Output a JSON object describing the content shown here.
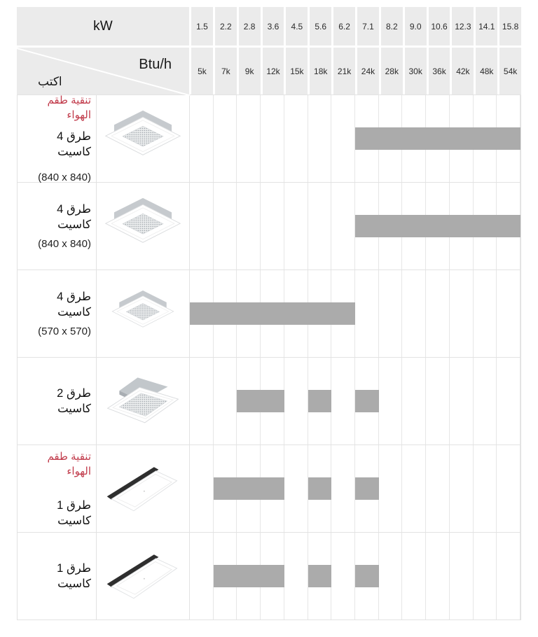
{
  "header": {
    "kw_label": "kW",
    "btu_label": "Btu/h",
    "type_label": "اكتب",
    "kw_values": [
      "1.5",
      "2.2",
      "2.8",
      "3.6",
      "4.5",
      "5.6",
      "6.2",
      "7.1",
      "8.2",
      "9.0",
      "10.6",
      "12.3",
      "14.1",
      "15.8"
    ],
    "btu_values": [
      "5k",
      "7k",
      "9k",
      "12k",
      "15k",
      "18k",
      "21k",
      "24k",
      "28k",
      "30k",
      "36k",
      "42k",
      "48k",
      "54k"
    ]
  },
  "rows": [
    {
      "badge": "طقم تنقية الهواء",
      "name": "4 طرق كاسيت",
      "size": "(840 x 840)",
      "image": "4way"
    },
    {
      "badge": "",
      "name": "4 طرق كاسيت",
      "size": "(840 x 840)",
      "image": "4way"
    },
    {
      "badge": "",
      "name": "4 طرق كاسيت",
      "size": "(570 x 570)",
      "image": "4way-small"
    },
    {
      "badge": "",
      "name": "2 طرق كاسيت",
      "size": "",
      "image": "2way"
    },
    {
      "badge": "طقم تنقية الهواء",
      "name": "1 طرق كاسيت",
      "size": "",
      "image": "1way"
    },
    {
      "badge": "",
      "name": "1 طرق كاسيت",
      "size": "",
      "image": "1way"
    }
  ],
  "colors": {
    "header_bg": "#ebebeb",
    "bar": "#ababab",
    "badge_red": "#c13b4b",
    "grid_line": "#e2e2e2"
  },
  "chart_data": {
    "type": "table",
    "subtype": "capacity-range-bars",
    "x_axis_top_label": "kW",
    "x_axis_bottom_label": "Btu/h",
    "x_kw": [
      1.5,
      2.2,
      2.8,
      3.6,
      4.5,
      5.6,
      6.2,
      7.1,
      8.2,
      9.0,
      10.6,
      12.3,
      14.1,
      15.8
    ],
    "x_btu": [
      "5k",
      "7k",
      "9k",
      "12k",
      "15k",
      "18k",
      "21k",
      "24k",
      "28k",
      "30k",
      "36k",
      "42k",
      "48k",
      "54k"
    ],
    "rows": [
      {
        "label": "طقم تنقية الهواء 4 طرق كاسيت (840 x 840)",
        "ranges": [
          {
            "kw_min": 7.1,
            "kw_max": 15.8,
            "btu_min": "24k",
            "btu_max": "54k"
          }
        ]
      },
      {
        "label": "4 طرق كاسيت (840 x 840)",
        "ranges": [
          {
            "kw_min": 7.1,
            "kw_max": 15.8,
            "btu_min": "24k",
            "btu_max": "54k"
          }
        ]
      },
      {
        "label": "4 طرق كاسيت (570 x 570)",
        "ranges": [
          {
            "kw_min": 1.5,
            "kw_max": 6.2,
            "btu_min": "5k",
            "btu_max": "21k"
          }
        ]
      },
      {
        "label": "2 طرق كاسيت",
        "ranges": [
          {
            "kw_min": 2.8,
            "kw_max": 3.6,
            "btu_min": "9k",
            "btu_max": "12k"
          },
          {
            "kw_min": 5.6,
            "kw_max": 5.6,
            "btu_min": "18k",
            "btu_max": "18k"
          },
          {
            "kw_min": 7.1,
            "kw_max": 7.1,
            "btu_min": "24k",
            "btu_max": "24k"
          }
        ]
      },
      {
        "label": "طقم تنقية الهواء 1 طرق كاسيت",
        "ranges": [
          {
            "kw_min": 2.2,
            "kw_max": 3.6,
            "btu_min": "7k",
            "btu_max": "12k"
          },
          {
            "kw_min": 5.6,
            "kw_max": 5.6,
            "btu_min": "18k",
            "btu_max": "18k"
          },
          {
            "kw_min": 7.1,
            "kw_max": 7.1,
            "btu_min": "24k",
            "btu_max": "24k"
          }
        ]
      },
      {
        "label": "1 طرق كاسيت",
        "ranges": [
          {
            "kw_min": 2.2,
            "kw_max": 3.6,
            "btu_min": "7k",
            "btu_max": "12k"
          },
          {
            "kw_min": 5.6,
            "kw_max": 5.6,
            "btu_min": "18k",
            "btu_max": "18k"
          },
          {
            "kw_min": 7.1,
            "kw_max": 7.1,
            "btu_min": "24k",
            "btu_max": "24k"
          }
        ]
      }
    ],
    "legend": [],
    "grid": true
  }
}
